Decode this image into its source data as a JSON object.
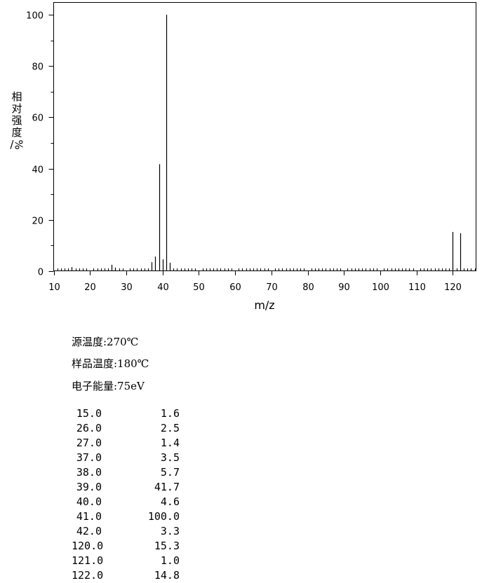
{
  "chart_data": {
    "type": "bar",
    "title": "",
    "xlabel": "m/z",
    "ylabel_chars": [
      "相",
      "对",
      "强",
      "度"
    ],
    "ylabel_unit": "%",
    "xlim": [
      10,
      127
    ],
    "ylim": [
      0,
      100
    ],
    "xticks": [
      10,
      20,
      30,
      40,
      50,
      60,
      70,
      80,
      90,
      100,
      110,
      120
    ],
    "yticks": [
      0,
      20,
      40,
      60,
      80,
      100
    ],
    "grid": false,
    "points": [
      {
        "mz": 15,
        "intensity": 1.6
      },
      {
        "mz": 26,
        "intensity": 2.5
      },
      {
        "mz": 27,
        "intensity": 1.4
      },
      {
        "mz": 37,
        "intensity": 3.5
      },
      {
        "mz": 38,
        "intensity": 5.7
      },
      {
        "mz": 39,
        "intensity": 41.7
      },
      {
        "mz": 40,
        "intensity": 4.6
      },
      {
        "mz": 41,
        "intensity": 100.0
      },
      {
        "mz": 42,
        "intensity": 3.3
      },
      {
        "mz": 120,
        "intensity": 15.3
      },
      {
        "mz": 121,
        "intensity": 1.0
      },
      {
        "mz": 122,
        "intensity": 14.8
      }
    ]
  },
  "conditions": {
    "source_temp": "源温度:270℃",
    "sample_temp": "样品温度:180℃",
    "electron_energy": "电子能量:75eV"
  },
  "peak_table": [
    {
      "mz": "15.0",
      "intensity": "1.6"
    },
    {
      "mz": "26.0",
      "intensity": "2.5"
    },
    {
      "mz": "27.0",
      "intensity": "1.4"
    },
    {
      "mz": "37.0",
      "intensity": "3.5"
    },
    {
      "mz": "38.0",
      "intensity": "5.7"
    },
    {
      "mz": "39.0",
      "intensity": "41.7"
    },
    {
      "mz": "40.0",
      "intensity": "4.6"
    },
    {
      "mz": "41.0",
      "intensity": "100.0"
    },
    {
      "mz": "42.0",
      "intensity": "3.3"
    },
    {
      "mz": "120.0",
      "intensity": "15.3"
    },
    {
      "mz": "121.0",
      "intensity": "1.0"
    },
    {
      "mz": "122.0",
      "intensity": "14.8"
    }
  ]
}
